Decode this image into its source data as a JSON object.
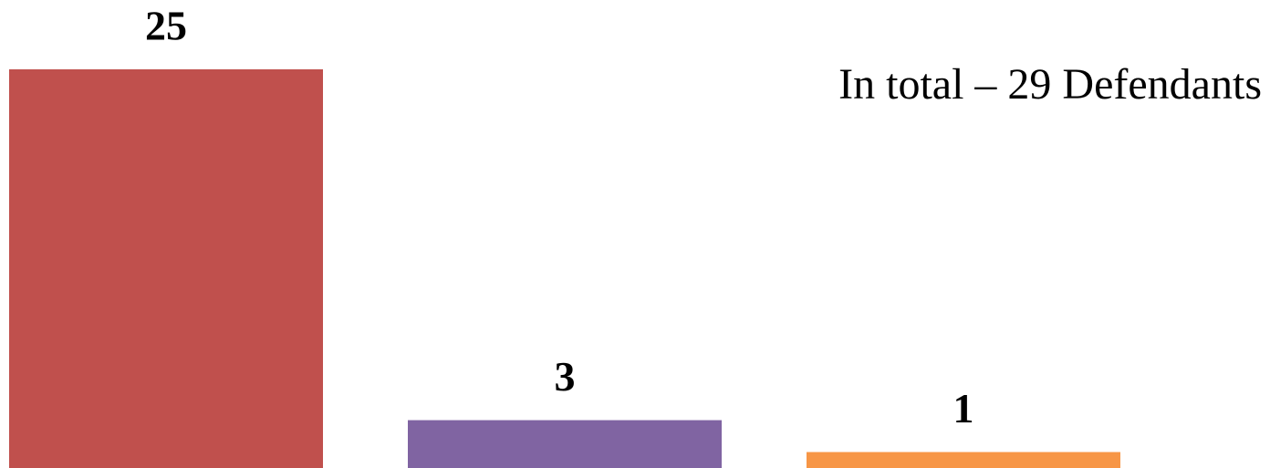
{
  "chart_data": {
    "type": "bar",
    "annotation": "In total – 29 Defendants",
    "categories": [
      null,
      null,
      null
    ],
    "values": [
      25,
      3,
      1
    ],
    "colors": [
      "#c0504d",
      "#8064a2",
      "#f79646"
    ],
    "ylim": [
      0,
      25
    ],
    "grid": false
  }
}
